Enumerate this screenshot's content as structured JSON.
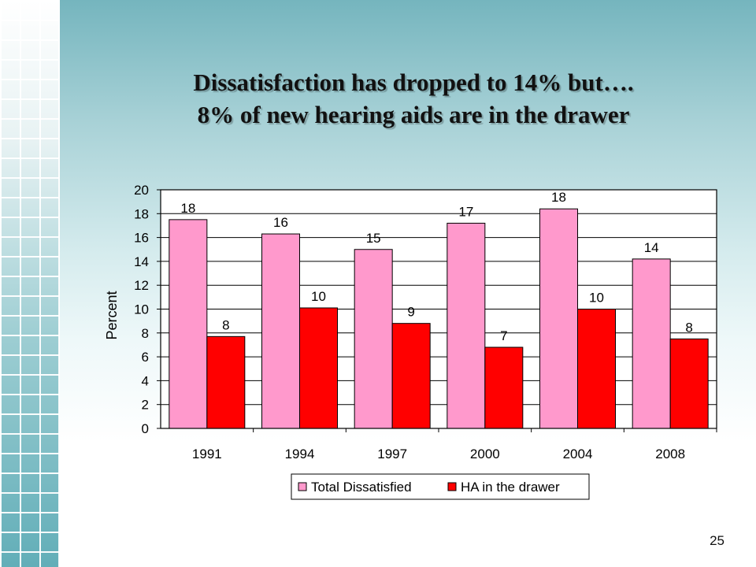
{
  "slide": {
    "title_line1": "Dissatisfaction has dropped to 14% but….",
    "title_line2": "8% of new hearing aids are in the drawer",
    "page_number": "25"
  },
  "colors": {
    "total_dissatisfied": "#ff99cc",
    "ha_in_drawer": "#ff0000"
  },
  "chart_data": {
    "type": "bar",
    "categories": [
      "1991",
      "1994",
      "1997",
      "2000",
      "2004",
      "2008"
    ],
    "series": [
      {
        "name": "Total Dissatisfied",
        "values": [
          17.5,
          16.3,
          15.0,
          17.2,
          18.4,
          14.2
        ],
        "labels": [
          "18",
          "16",
          "15",
          "17",
          "18",
          "14"
        ],
        "color": "#ff99cc"
      },
      {
        "name": "HA in the drawer",
        "values": [
          7.7,
          10.1,
          8.8,
          6.8,
          10.0,
          7.5
        ],
        "labels": [
          "8",
          "10",
          "9",
          "7",
          "10",
          "8"
        ],
        "color": "#ff0000"
      }
    ],
    "ylabel": "Percent",
    "ylim": [
      0,
      20
    ],
    "yticks": [
      0,
      2,
      4,
      6,
      8,
      10,
      12,
      14,
      16,
      18,
      20
    ],
    "grid": true,
    "legend": "bottom"
  }
}
